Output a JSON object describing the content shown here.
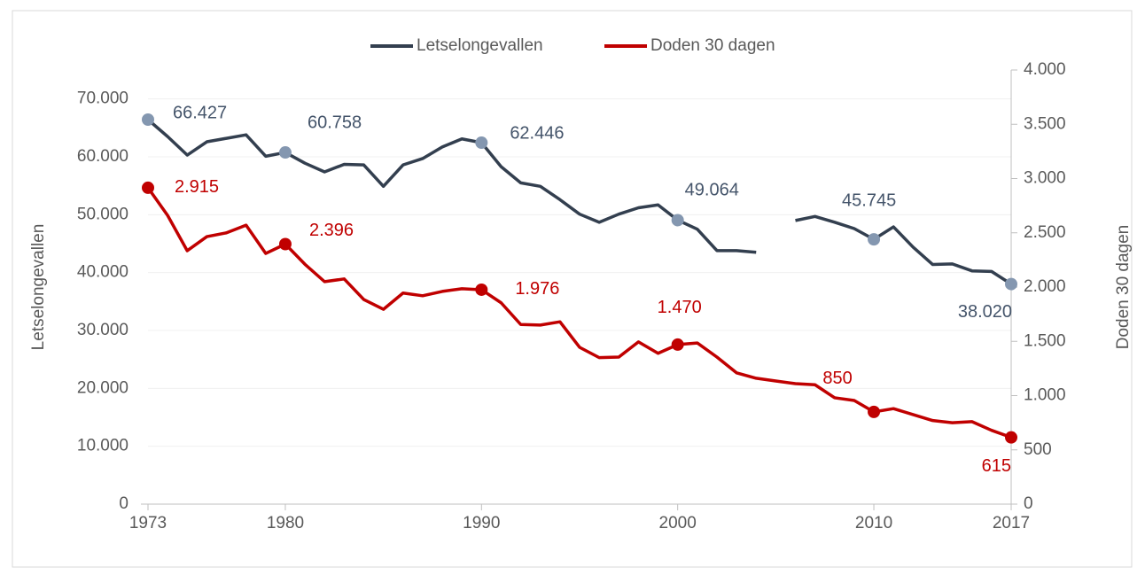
{
  "chart_data": {
    "type": "line",
    "x": [
      1973,
      1974,
      1975,
      1976,
      1977,
      1978,
      1979,
      1980,
      1981,
      1982,
      1983,
      1984,
      1985,
      1986,
      1987,
      1988,
      1989,
      1990,
      1991,
      1992,
      1993,
      1994,
      1995,
      1996,
      1997,
      1998,
      1999,
      2000,
      2001,
      2002,
      2003,
      2004,
      2005,
      2006,
      2007,
      2008,
      2009,
      2010,
      2011,
      2012,
      2013,
      2014,
      2015,
      2016,
      2017
    ],
    "xlim": [
      1973,
      2017
    ],
    "xticks": [
      1973,
      1980,
      1990,
      2000,
      2010,
      2017
    ],
    "ylabel": "Letselongevallen",
    "y2label": "Doden 30 dagen",
    "ylim": [
      0,
      75000
    ],
    "yticks": [
      0,
      {
        "value": 10000,
        "label": "10.000"
      },
      {
        "value": 20000,
        "label": "20.000"
      },
      {
        "value": 30000,
        "label": "30.000"
      },
      {
        "value": 40000,
        "label": "40.000"
      },
      {
        "value": 50000,
        "label": "50.000"
      },
      {
        "value": 60000,
        "label": "60.000"
      },
      {
        "value": 70000,
        "label": "70.000"
      }
    ],
    "y2lim": [
      0,
      4000
    ],
    "y2ticks": [
      0,
      500,
      {
        "value": 1000,
        "label": "1.000"
      },
      {
        "value": 1500,
        "label": "1.500"
      },
      {
        "value": 2000,
        "label": "2.000"
      },
      {
        "value": 2500,
        "label": "2.500"
      },
      {
        "value": 3000,
        "label": "3.000"
      },
      {
        "value": 3500,
        "label": "3.500"
      },
      {
        "value": 4000,
        "label": "4.000"
      }
    ],
    "grid": true,
    "legend": "top",
    "series": [
      {
        "name": "Letselongevallen",
        "color": "#333f4f",
        "marker_color": "#8497b0",
        "label_color": "#44546a",
        "values": [
          66427,
          63500,
          60300,
          62600,
          63200,
          63800,
          60100,
          60758,
          58900,
          57400,
          58700,
          58600,
          54900,
          58600,
          59700,
          61700,
          63100,
          62446,
          58300,
          55500,
          54900,
          52600,
          50100,
          48700,
          50100,
          51200,
          51700,
          49064,
          47500,
          43800,
          43800,
          43500,
          null,
          49000,
          49700,
          48700,
          47600,
          45745,
          47900,
          44400,
          41400,
          41500,
          40300,
          40200,
          38020
        ],
        "value_labels": [
          "66.427",
          null,
          null,
          null,
          null,
          null,
          null,
          "60.758",
          null,
          null,
          null,
          null,
          null,
          null,
          null,
          null,
          null,
          "62.446",
          null,
          null,
          null,
          null,
          null,
          null,
          null,
          null,
          null,
          "49.064",
          null,
          null,
          null,
          null,
          null,
          null,
          null,
          null,
          null,
          "45.745",
          null,
          null,
          null,
          null,
          null,
          null,
          "38.020"
        ]
      },
      {
        "name": "Doden 30 dagen",
        "color": "#c00000",
        "marker_color": "#c00000",
        "label_color": "#c00000",
        "axis": "y2",
        "values": [
          2915,
          2660,
          2335,
          2465,
          2500,
          2570,
          2310,
          2396,
          2210,
          2050,
          2075,
          1885,
          1795,
          1945,
          1920,
          1960,
          1985,
          1976,
          1855,
          1655,
          1650,
          1680,
          1445,
          1350,
          1355,
          1495,
          1390,
          1470,
          1485,
          1355,
          1210,
          1160,
          1135,
          1110,
          1100,
          980,
          955,
          850,
          880,
          825,
          770,
          750,
          760,
          680,
          615
        ],
        "value_labels": [
          "2.915",
          null,
          null,
          null,
          null,
          null,
          null,
          "2.396",
          null,
          null,
          null,
          null,
          null,
          null,
          null,
          null,
          null,
          "1.976",
          null,
          null,
          null,
          null,
          null,
          null,
          null,
          null,
          null,
          "1.470",
          null,
          null,
          null,
          null,
          null,
          null,
          null,
          null,
          null,
          "850",
          null,
          null,
          null,
          null,
          null,
          null,
          "615"
        ]
      }
    ]
  }
}
